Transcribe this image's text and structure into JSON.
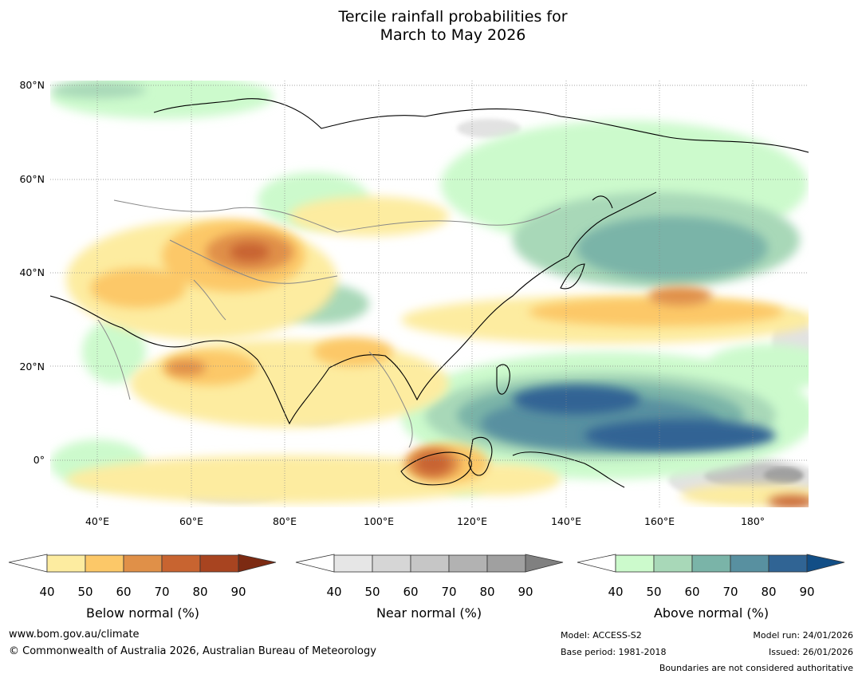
{
  "title_line1": "Tercile rainfall probabilities for",
  "title_line2": "March to May 2026",
  "map": {
    "lat_labels": [
      "80°N",
      "60°N",
      "40°N",
      "20°N",
      "0°"
    ],
    "lon_labels": [
      "40°E",
      "60°E",
      "80°E",
      "100°E",
      "120°E",
      "140°E",
      "160°E",
      "180°"
    ],
    "lon_range": [
      30,
      191
    ],
    "lat_range": [
      -10,
      81
    ]
  },
  "legends": {
    "below": {
      "title": "Below normal (%)",
      "ticks": [
        "40",
        "50",
        "60",
        "70",
        "80",
        "90"
      ],
      "colors": [
        "#fdeca0",
        "#fcc868",
        "#e09048",
        "#c86430",
        "#a84420",
        "#7c2a12"
      ]
    },
    "near": {
      "title": "Near normal (%)",
      "ticks": [
        "40",
        "50",
        "60",
        "70",
        "80",
        "90"
      ],
      "colors": [
        "#e6e6e6",
        "#d6d6d6",
        "#c6c6c6",
        "#b2b2b2",
        "#a0a0a0",
        "#808080"
      ]
    },
    "above": {
      "title": "Above normal (%)",
      "ticks": [
        "40",
        "50",
        "60",
        "70",
        "80",
        "90"
      ],
      "colors": [
        "#ccfacc",
        "#a8d8b8",
        "#7ab4a8",
        "#5890a0",
        "#306494",
        "#124e86"
      ]
    }
  },
  "footer": {
    "website": "www.bom.gov.au/climate",
    "copyright": "© Commonwealth of Australia 2026, Australian Bureau of Meteorology",
    "model": "Model: ACCESS-S2",
    "base_period": "Base period: 1981-2018",
    "model_run": "Model run: 24/01/2026",
    "issued": "Issued: 26/01/2026",
    "boundaries": "Boundaries are not considered authoritative"
  }
}
